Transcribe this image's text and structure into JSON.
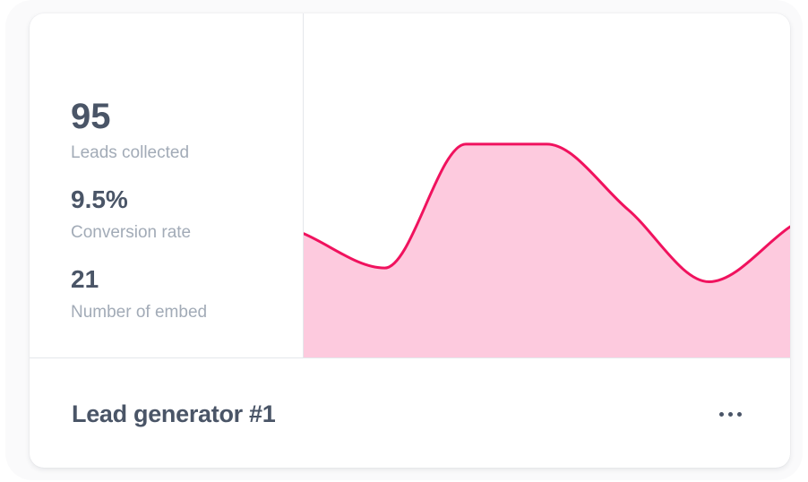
{
  "card": {
    "title": "Lead generator #1",
    "more_icon": "more-horizontal-icon",
    "accent_color": "#f0125e",
    "fill_color": "#fdcade",
    "text_color": "#4a5567",
    "muted_color": "#a2abb7"
  },
  "stats": [
    {
      "value": "95",
      "label": "Leads collected"
    },
    {
      "value": "9.5%",
      "label": "Conversion rate"
    },
    {
      "value": "21",
      "label": "Number of embed"
    }
  ],
  "chart_data": {
    "type": "area",
    "smooth": true,
    "x": [
      0,
      1,
      2,
      3,
      4,
      5,
      6
    ],
    "values": [
      0.36,
      0.26,
      0.62,
      0.62,
      0.43,
      0.22,
      0.38
    ],
    "ylim": [
      0,
      1
    ],
    "grid": false,
    "axes_visible": false
  }
}
